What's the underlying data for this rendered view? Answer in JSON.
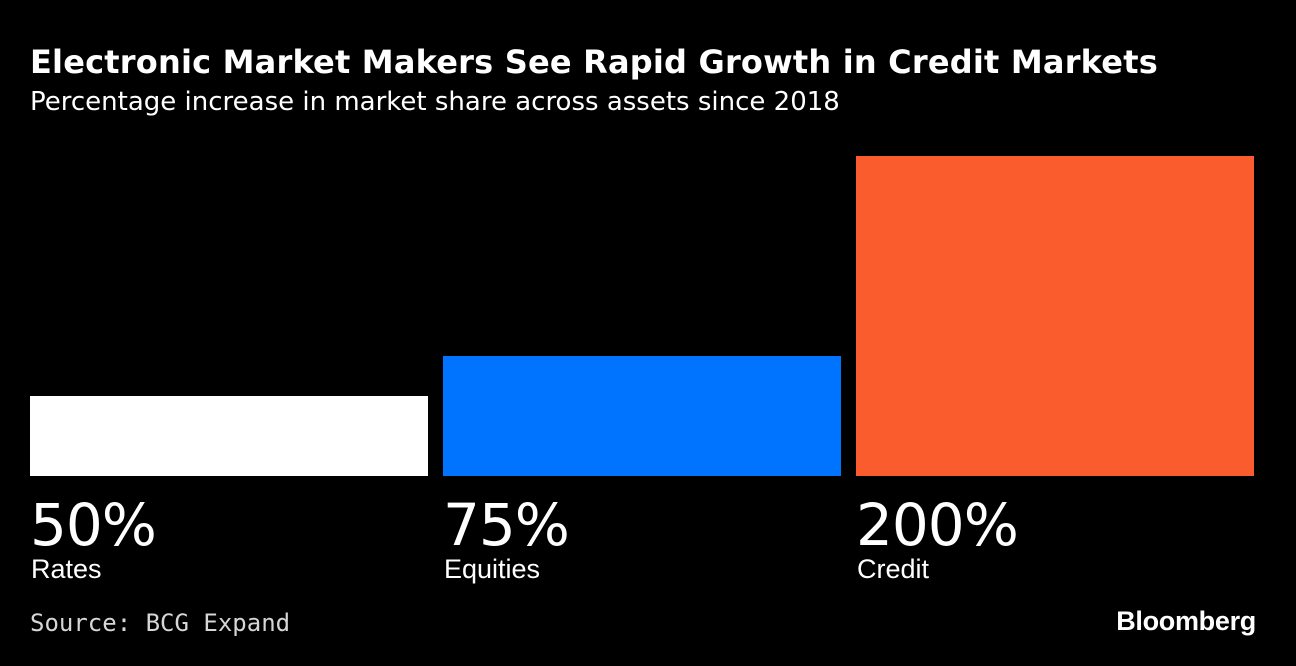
{
  "header": {
    "title": "Electronic Market Makers See Rapid Growth in Credit Markets",
    "subtitle": "Percentage increase in market share across assets since 2018"
  },
  "chart_data": {
    "type": "bar",
    "categories": [
      "Rates",
      "Equities",
      "Credit"
    ],
    "values": [
      50,
      75,
      200
    ],
    "value_labels": [
      "50%",
      "75%",
      "200%"
    ],
    "colors": [
      "#ffffff",
      "#0073ff",
      "#fb5c2e"
    ],
    "ylim": [
      0,
      200
    ],
    "grid": false,
    "legend": "none",
    "title": "Electronic Market Makers See Rapid Growth in Credit Markets",
    "subtitle": "Percentage increase in market share across assets since 2018",
    "xlabel": "",
    "ylabel": ""
  },
  "footer": {
    "source": "Source: BCG Expand",
    "brand": "Bloomberg"
  },
  "colors": {
    "background": "#000000",
    "text": "#ffffff"
  }
}
